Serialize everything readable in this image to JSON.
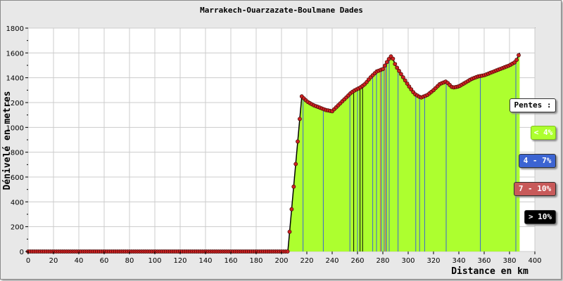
{
  "chart_data": {
    "type": "area",
    "title": "Marrakech-Ouarzazate-Boulmane Dades",
    "xlabel": "Distance en km",
    "ylabel": "Dénivelé en metres",
    "xlim": [
      0,
      400
    ],
    "ylim": [
      0,
      1800
    ],
    "x_ticks": [
      "0",
      "20",
      "40",
      "60",
      "80",
      "100",
      "120",
      "140",
      "160",
      "180",
      "200",
      "220",
      "240",
      "260",
      "280",
      "300",
      "320",
      "340",
      "360",
      "380",
      "400"
    ],
    "y_ticks": [
      "0",
      "200",
      "400",
      "600",
      "800",
      "1000",
      "1200",
      "1400",
      "1600",
      "1800"
    ],
    "grid": true,
    "profile": {
      "x": [
        0,
        20,
        40,
        60,
        80,
        100,
        120,
        140,
        160,
        180,
        200,
        205,
        216,
        220,
        225,
        230,
        235,
        240,
        245,
        250,
        255,
        258,
        262,
        266,
        270,
        275,
        280,
        284,
        287,
        290,
        295,
        300,
        305,
        310,
        315,
        320,
        325,
        330,
        335,
        340,
        345,
        350,
        355,
        360,
        365,
        370,
        375,
        380,
        385,
        388
      ],
      "y": [
        0,
        0,
        0,
        0,
        0,
        0,
        0,
        0,
        0,
        0,
        0,
        0,
        1250,
        1210,
        1180,
        1160,
        1140,
        1130,
        1180,
        1230,
        1280,
        1300,
        1320,
        1350,
        1400,
        1450,
        1470,
        1540,
        1580,
        1500,
        1420,
        1340,
        1270,
        1240,
        1260,
        1300,
        1350,
        1370,
        1320,
        1330,
        1360,
        1390,
        1410,
        1420,
        1440,
        1460,
        1480,
        1500,
        1530,
        1600
      ]
    },
    "area_color": "#adff2f",
    "outline_color": "#000000",
    "marker_color": "#cc2222",
    "legend_title": "Pentes :",
    "legend": [
      {
        "label": "< 4%",
        "color": "#adff2f",
        "text_color": "#ffffff"
      },
      {
        "label": "4 - 7%",
        "color": "#3c64d2",
        "text_color": "#ffffff"
      },
      {
        "label": "7 - 10%",
        "color": "#c85a5a",
        "text_color": "#ffffff"
      },
      {
        "label": "> 10%",
        "color": "#000000",
        "text_color": "#ffffff"
      }
    ],
    "slope_lines": [
      {
        "x": 217,
        "cls": "blue"
      },
      {
        "x": 233,
        "cls": "blue"
      },
      {
        "x": 254,
        "cls": "blue"
      },
      {
        "x": 257,
        "cls": "black"
      },
      {
        "x": 260,
        "cls": "blue"
      },
      {
        "x": 262,
        "cls": "black"
      },
      {
        "x": 264,
        "cls": "black"
      },
      {
        "x": 272,
        "cls": "blue"
      },
      {
        "x": 275,
        "cls": "blue"
      },
      {
        "x": 278,
        "cls": "red"
      },
      {
        "x": 279,
        "cls": "blue"
      },
      {
        "x": 281,
        "cls": "blue"
      },
      {
        "x": 282,
        "cls": "red"
      },
      {
        "x": 283,
        "cls": "blue"
      },
      {
        "x": 285,
        "cls": "blue"
      },
      {
        "x": 292,
        "cls": "blue"
      },
      {
        "x": 306,
        "cls": "blue"
      },
      {
        "x": 309,
        "cls": "blue"
      },
      {
        "x": 313,
        "cls": "blue"
      },
      {
        "x": 330,
        "cls": "blue"
      },
      {
        "x": 357,
        "cls": "blue"
      },
      {
        "x": 385,
        "cls": "blue"
      }
    ]
  }
}
